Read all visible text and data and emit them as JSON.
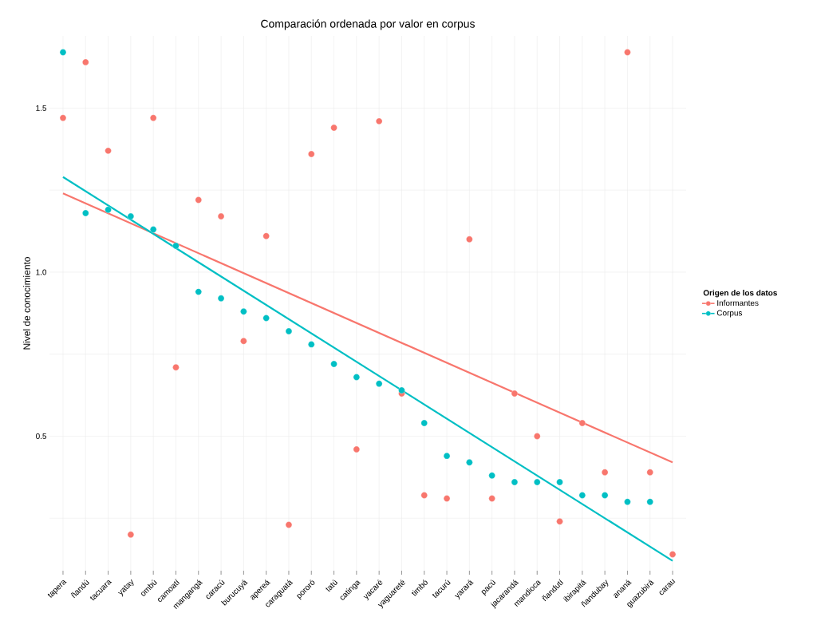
{
  "chart_data": {
    "type": "scatter",
    "title": "Comparación ordenada por valor en corpus",
    "ylabel": "Nivel de conocimiento",
    "legend_title": "Origen de los datos",
    "categories": [
      "tapera",
      "ñandú",
      "tacuara",
      "yatay",
      "ombú",
      "camoatí",
      "mangangá",
      "caracú",
      "burucuyá",
      "apereá",
      "caraguatá",
      "pororó",
      "tatú",
      "catinga",
      "yacaré",
      "yaguareté",
      "timbó",
      "tacurú",
      "yarará",
      "pacú",
      "jacarandá",
      "mandioca",
      "ñandutí",
      "ibirapitá",
      "ñandubay",
      "ananá",
      "guazubirá",
      "carau"
    ],
    "series": [
      {
        "name": "Informantes",
        "color": "#f8766d",
        "marker": "circle",
        "values": [
          1.47,
          1.64,
          1.37,
          0.2,
          1.47,
          0.71,
          1.22,
          1.17,
          0.79,
          1.11,
          0.23,
          1.36,
          1.44,
          0.46,
          1.46,
          0.63,
          0.32,
          0.31,
          1.1,
          0.31,
          0.63,
          0.5,
          0.24,
          0.54,
          0.39,
          1.67,
          0.39,
          0.14
        ]
      },
      {
        "name": "Corpus",
        "color": "#00bfc4",
        "marker": "circle",
        "values": [
          1.67,
          1.18,
          1.19,
          1.17,
          1.13,
          1.08,
          0.94,
          0.92,
          0.88,
          0.86,
          0.82,
          0.78,
          0.72,
          0.68,
          0.66,
          0.64,
          0.54,
          0.44,
          0.42,
          0.38,
          0.36,
          0.36,
          0.36,
          0.32,
          0.32,
          0.3,
          0.3,
          null
        ]
      },
      {
        "color": "#f8766d",
        "type": "line",
        "x": [
          "tapera",
          "carau"
        ],
        "values": [
          1.24,
          0.42
        ]
      },
      {
        "color": "#00bfc4",
        "type": "line",
        "x": [
          "tapera",
          "carau"
        ],
        "values": [
          1.29,
          0.12
        ]
      }
    ],
    "ylim": [
      0.09,
      1.72
    ],
    "yticks": [
      {
        "value": 0.25,
        "label": null
      },
      0.5,
      {
        "value": 0.75,
        "label": null
      },
      {
        "value": 1.0,
        "label": "1.0"
      },
      {
        "value": 1.25,
        "label": null
      },
      1.5
    ],
    "grid": true,
    "legend": "right"
  }
}
